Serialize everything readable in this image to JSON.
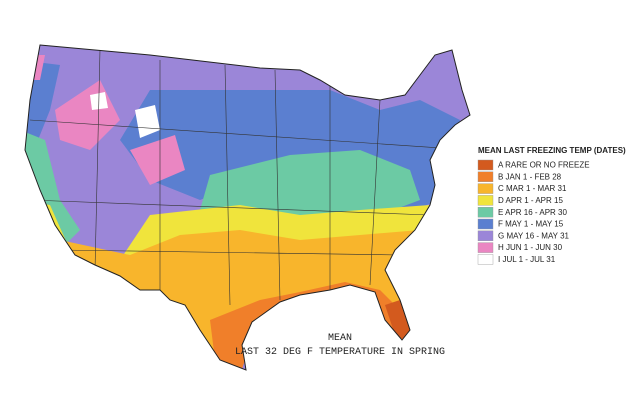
{
  "map": {
    "caption": [
      "MEAN",
      "LAST 32 DEG F TEMPERATURE IN SPRING"
    ],
    "legend": {
      "title": "MEAN LAST FREEZING TEMP (DATES)",
      "items": [
        {
          "label": "A RARE OR NO FREEZE",
          "color": "#d35a1e"
        },
        {
          "label": "B JAN 1 - FEB 28",
          "color": "#f07f2a"
        },
        {
          "label": "C MAR 1 - MAR 31",
          "color": "#f8b52c"
        },
        {
          "label": "D APR 1 - APR 15",
          "color": "#f0e43c"
        },
        {
          "label": "E APR 16 - APR 30",
          "color": "#6ccaa4"
        },
        {
          "label": "F MAY 1 - MAY 15",
          "color": "#5b7fd0"
        },
        {
          "label": "G MAY 16 - MAY 31",
          "color": "#9b86d8"
        },
        {
          "label": "H JUN 1 - JUN 30",
          "color": "#ea86c2"
        },
        {
          "label": "I JUL 1 - JUL 31",
          "color": "#ffffff"
        }
      ]
    }
  }
}
